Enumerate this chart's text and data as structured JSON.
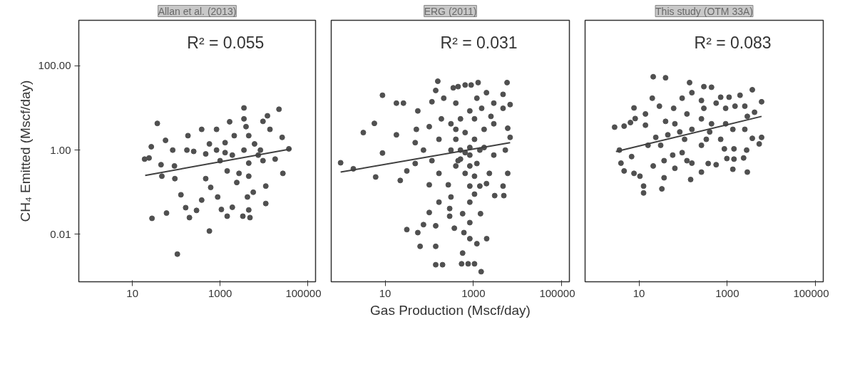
{
  "chart_data": [
    {
      "type": "scatter",
      "title": "Allan et al. (2013)",
      "ylabel": "CH₄ Emitted (Mscf/day)",
      "annotations": [
        "R² = 0.055"
      ],
      "log": "xy",
      "grid": false,
      "xlim": [
        0.6,
        150000
      ],
      "ylim": [
        0.00075,
        1200
      ],
      "xticks": [
        10,
        1000,
        100000
      ],
      "yticks": [
        {
          "value": 0.01,
          "label": "0.01"
        },
        {
          "value": 1,
          "label": "1.00"
        },
        {
          "value": 100,
          "label": "100.00"
        }
      ],
      "series": [
        {
          "type": "scatter",
          "marker": "circle",
          "color": "#505050",
          "x": [
            3500,
            22000,
            37,
            380,
            1650,
            830,
            12000,
            9500,
            3900,
            185,
            57,
            27,
            83,
            19,
            45,
            91,
            175,
            250,
            570,
            1300,
            2100,
            4500,
            6100,
            26000,
            37000,
            18000,
            27000,
            9500,
            4500,
            2700,
            1450,
            1000,
            470,
            1900,
            470,
            93,
            47,
            610,
            880,
            2400,
            4500,
            11000,
            5700,
            4200,
            11000,
            128,
            380,
            164,
            290,
            60,
            28,
            200,
            1070,
            1450,
            1900,
            3300,
            4500,
            4800,
            570,
            106,
            24,
            1300,
            3500,
            7400,
            3500,
            830,
            13700,
            8300
          ],
          "values": [
            10,
            9.3,
            4.3,
            3.1,
            4.7,
            3.1,
            6.5,
            4.8,
            3.6,
            2.2,
            1.7,
            1.2,
            1.0,
            0.61,
            0.45,
            0.42,
            1.0,
            0.93,
            1.4,
            1.5,
            2.2,
            2.2,
            1.4,
            2.0,
            1.07,
            0.61,
            0.28,
            0.56,
            0.49,
            0.28,
            0.32,
            0.56,
            0.81,
            0.76,
            0.21,
            0.21,
            0.24,
            0.13,
            0.077,
            0.17,
            0.24,
            0.14,
            0.1,
            0.077,
            0.054,
            0.087,
            0.065,
            0.043,
            0.037,
            0.032,
            0.024,
            0.025,
            0.039,
            0.027,
            0.044,
            0.027,
            0.038,
            0.025,
            0.012,
            0.0034,
            0.65,
            0.87,
            1.0,
            0.76,
            5.5,
            1.0,
            3.1,
            1.0
          ]
        },
        {
          "type": "line",
          "color": "#404040",
          "x": [
            19.6,
            42000
          ],
          "values": [
            0.25,
            1.07
          ]
        }
      ]
    },
    {
      "type": "scatter",
      "title": "ERG (2011)",
      "xlabel": "Gas Production (Mscf/day)",
      "annotations": [
        "R² = 0.031"
      ],
      "log": "xy",
      "grid": false,
      "tick_labels": "x",
      "xlim": [
        0.6,
        150000
      ],
      "ylim": [
        0.00075,
        1200
      ],
      "xticks": [
        10,
        1000,
        100000
      ],
      "series": [
        {
          "type": "scatter",
          "marker": "circle",
          "color": "#505050",
          "x": [
            0.98,
            3.2,
            5.7,
            8.7,
            18,
            26,
            18,
            8.7,
            6.1,
            22,
            31,
            48,
            48,
            51,
            55,
            156,
            140,
            115,
            213,
            100,
            74,
            115,
            166,
            166,
            100,
            350,
            450,
            650,
            890,
            1280,
            1980,
            5800,
            4700,
            6800,
            4700,
            2900,
            1200,
            400,
            188,
            310,
            510,
            830,
            1540,
            2500,
            6000,
            6800,
            5300,
            2900,
            1750,
            1060,
            650,
            400,
            310,
            510,
            830,
            1200,
            400,
            650,
            1060,
            2300,
            6000,
            4700,
            3040,
            4900,
            1980,
            1400,
            830,
            270,
            310,
            166,
            830,
            1060,
            100,
            290,
            290,
            570,
            1450,
            830,
            74,
            31,
            55,
            140,
            370,
            610,
            830,
            1200,
            2000,
            62,
            140,
            570,
            140,
            200,
            540,
            760,
            1060,
            1500,
            1.9,
            510,
            650,
            830,
            1400,
            1750,
            1060,
            2900,
            400,
            830,
            450
          ],
          "values": [
            0.5,
            2.6,
            4.3,
            20,
            13,
            13,
            2.3,
            0.85,
            0.23,
            0.19,
            0.32,
            0.48,
            1.5,
            3.1,
            8.5,
            43,
            26,
            14,
            17,
            3.6,
            1.0,
            0.56,
            1.8,
            0.28,
            0.15,
            30,
            32,
            35,
            35,
            40,
            23,
            40,
            21,
            12,
            9.8,
            13,
            17,
            13,
            5.5,
            4.2,
            5.5,
            8.5,
            9.8,
            6.3,
            3.3,
            2.0,
            1.0,
            0.76,
            1.15,
            1.8,
            2.6,
            1.8,
            1.0,
            0.61,
            0.76,
            0.48,
            0.42,
            0.28,
            0.24,
            0.28,
            0.28,
            0.14,
            0.083,
            0.083,
            0.16,
            0.14,
            0.14,
            0.15,
            0.077,
            0.058,
            0.058,
            0.09,
            0.033,
            0.041,
            0.027,
            0.031,
            0.031,
            0.019,
            0.017,
            0.013,
            0.011,
            0.016,
            0.014,
            0.011,
            0.0079,
            0.006,
            0.0079,
            0.0052,
            0.0052,
            0.0036,
            0.0019,
            0.0019,
            0.002,
            0.002,
            0.002,
            0.0013,
            0.36,
            1.0,
            0.87,
            1.15,
            1.0,
            3.1,
            5.5,
            4.2,
            3.1,
            0.42,
            0.56
          ]
        },
        {
          "type": "line",
          "color": "#404040",
          "x": [
            0.98,
            6800
          ],
          "values": [
            0.3,
            1.5
          ]
        }
      ]
    },
    {
      "type": "scatter",
      "title": "This study (OTM 33A)",
      "annotations": [
        "R² = 0.083"
      ],
      "log": "xy",
      "grid": false,
      "tick_labels": "x",
      "xlim": [
        0.6,
        150000
      ],
      "ylim": [
        0.00075,
        1200
      ],
      "xticks": [
        10,
        1000,
        100000
      ],
      "series": [
        {
          "type": "scatter",
          "marker": "circle",
          "color": "#505050",
          "x": [
            21,
            40,
            140,
            295,
            440,
            3700,
            6000,
            1950,
            1100,
            710,
            260,
            158,
            95,
            20,
            61,
            29,
            7.7,
            14,
            8.2,
            2.8,
            4.6,
            6.4,
            14,
            40,
            65,
            122,
            295,
            560,
            920,
            1500,
            2500,
            2850,
            4150,
            6000,
            5300,
            3700,
            2500,
            1340,
            920,
            440,
            260,
            158,
            84,
            45,
            24,
            31,
            16,
            3.6,
            6.8,
            3.9,
            4.6,
            7.7,
            10.5,
            12.7,
            12.7,
            33,
            37,
            21,
            37,
            58,
            95,
            122,
            158,
            65,
            148,
            260,
            370,
            560,
            260,
            335,
            710,
            860,
            1420,
            980,
            1420,
            2350,
            1340,
            2750,
            2850,
            400,
            108
          ],
          "values": [
            55,
            52,
            40,
            32,
            31,
            27,
            14,
            20,
            18,
            18,
            15,
            23,
            17,
            17,
            9.8,
            11,
            10,
            7.2,
            5.6,
            3.5,
            3.7,
            4.5,
            3.9,
            4.8,
            4.2,
            7.2,
            9.8,
            13,
            9.8,
            11,
            11,
            6.3,
            7.9,
            2.0,
            1.4,
            1.9,
            3.1,
            3.1,
            4.2,
            4.2,
            5.5,
            3.1,
            2.7,
            2.3,
            2.0,
            1.3,
            1.3,
            1.0,
            0.7,
            0.49,
            0.32,
            0.28,
            0.24,
            0.14,
            0.096,
            0.12,
            0.22,
            0.42,
            0.56,
            0.76,
            0.87,
            0.56,
            0.49,
            0.37,
            0.2,
            0.3,
            0.48,
            0.45,
            1.3,
            1.8,
            1.8,
            1.07,
            1.07,
            0.63,
            0.61,
            0.65,
            0.35,
            1.0,
            0.3,
            2.7,
            1.8
          ]
        },
        {
          "type": "line",
          "color": "#404040",
          "x": [
            3.0,
            6000
          ],
          "values": [
            0.92,
            6.3
          ]
        }
      ]
    }
  ]
}
